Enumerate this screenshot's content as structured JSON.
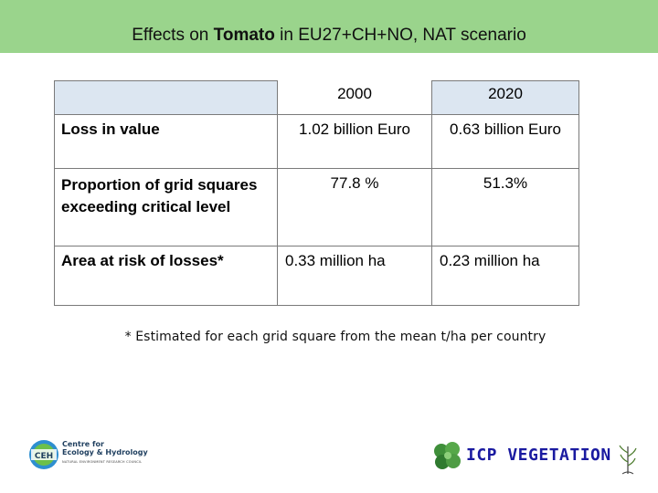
{
  "title": {
    "prefix": "Effects on ",
    "highlight": "Tomato",
    "suffix": " in EU27+CH+NO, NAT scenario"
  },
  "table": {
    "columns": [
      "2000",
      "2020"
    ],
    "rows": [
      {
        "label": "Loss in value",
        "values": [
          "1.02 billion Euro",
          "0.63 billion Euro"
        ]
      },
      {
        "label": "Proportion of grid squares exceeding critical level",
        "values": [
          "77.8 %",
          "51.3%"
        ]
      },
      {
        "label": "Area at risk of losses*",
        "values": [
          "0.33 million ha",
          "0.23 million ha"
        ]
      }
    ]
  },
  "footnote": "* Estimated for each grid square from the mean t/ha per country",
  "logos": {
    "ceh_badge": "CEH",
    "ceh_name_line1": "Centre for",
    "ceh_name_line2": "Ecology & Hydrology",
    "ceh_sub": "NATURAL ENVIRONMENT RESEARCH COUNCIL",
    "icp": "ICP VEGETATION"
  },
  "colors": {
    "title_bar": "#9ad48c",
    "header_shade": "#dce6f1",
    "icp_text": "#1a1aa0"
  }
}
